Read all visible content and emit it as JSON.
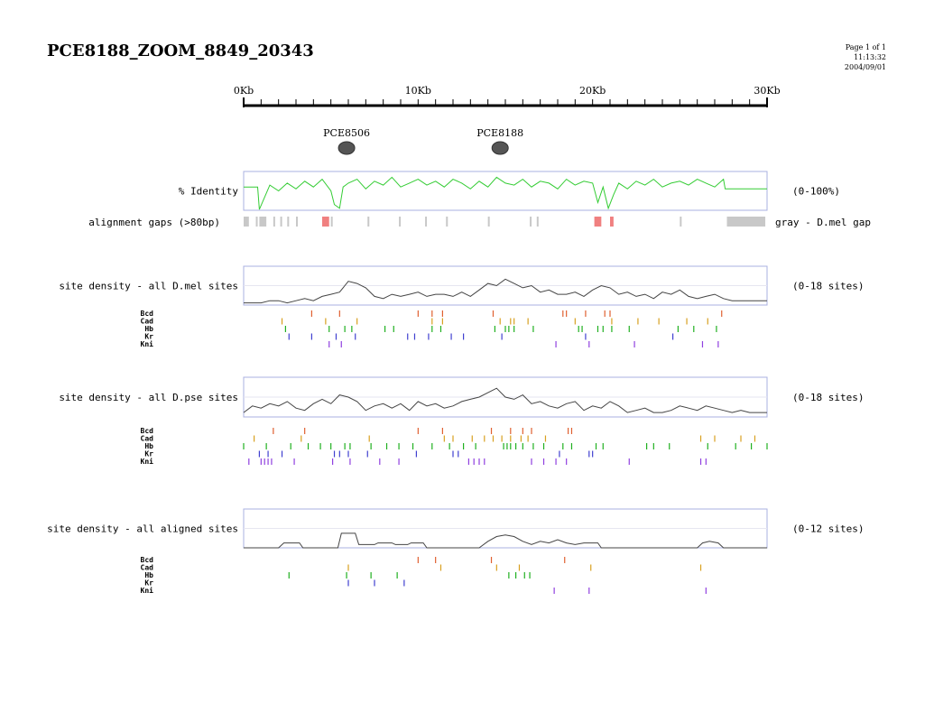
{
  "page": {
    "title": "PCE8188_ZOOM_8849_20343",
    "page_label": "Page 1 of 1",
    "time": "11:13:32",
    "date": "2004/09/01"
  },
  "colors": {
    "identity_line": "#33cc33",
    "density_line": "#444444",
    "panel_border": "#aab0e0",
    "gap_dmel": "#c8c8c8",
    "gap_other": "#f08080",
    "site_colors": {
      "Bcd": "#e06030",
      "Cad": "#d8a020",
      "Hb": "#20b020",
      "Kr": "#4040d0",
      "Kni": "#9040e0"
    }
  },
  "chart_data": [
    {
      "type": "scale",
      "axis_range_kb": [
        0,
        30
      ],
      "tick_labels": [
        {
          "value": 0,
          "label": "0Kb"
        },
        {
          "value": 10,
          "label": "10Kb"
        },
        {
          "value": 20,
          "label": "20Kb"
        },
        {
          "value": 30,
          "label": "30Kb"
        }
      ],
      "minor_tick_step_kb": 1
    },
    {
      "type": "features",
      "items": [
        {
          "name": "PCE8506",
          "position_kb": 5.9
        },
        {
          "name": "PCE8188",
          "position_kb": 14.7
        }
      ]
    },
    {
      "type": "line",
      "label": "% Identity",
      "range_label": "(0-100%)",
      "ylim": [
        0,
        100
      ],
      "xlim_kb": [
        0,
        30
      ],
      "x_kb": [
        0,
        0.8,
        0.9,
        1.5,
        2,
        2.5,
        3,
        3.5,
        4,
        4.5,
        5,
        5.2,
        5.5,
        5.7,
        6,
        6.5,
        7,
        7.5,
        8,
        8.5,
        9,
        9.5,
        10,
        10.5,
        11,
        11.5,
        12,
        12.5,
        13,
        13.5,
        14,
        14.5,
        15,
        15.5,
        16,
        16.5,
        17,
        17.5,
        18,
        18.5,
        19,
        19.5,
        20,
        20.3,
        20.6,
        20.9,
        21.2,
        21.5,
        22,
        22.5,
        23,
        23.5,
        24,
        24.5,
        25,
        25.5,
        26,
        26.5,
        27,
        27.5,
        27.6,
        28.5,
        29.5,
        30
      ],
      "y": [
        60,
        60,
        2,
        65,
        50,
        70,
        55,
        75,
        60,
        80,
        50,
        15,
        5,
        60,
        70,
        80,
        55,
        75,
        65,
        85,
        60,
        70,
        80,
        65,
        75,
        60,
        80,
        70,
        55,
        75,
        60,
        85,
        70,
        65,
        80,
        60,
        75,
        70,
        55,
        80,
        65,
        75,
        70,
        20,
        60,
        5,
        40,
        70,
        55,
        75,
        65,
        80,
        60,
        70,
        75,
        65,
        80,
        70,
        60,
        80,
        55,
        55,
        55,
        55
      ],
      "grid": false
    },
    {
      "type": "gaps",
      "label": "alignment gaps (>80bp)",
      "legend_label": "gray - D.mel gap",
      "gray_kb": [
        [
          0,
          0.3
        ],
        [
          0.7,
          0.8
        ],
        [
          0.9,
          1.3
        ],
        [
          1.7,
          1.8
        ],
        [
          2.1,
          2.2
        ],
        [
          2.5,
          2.6
        ],
        [
          3.0,
          3.1
        ],
        [
          5.0,
          5.1
        ],
        [
          7.1,
          7.2
        ],
        [
          8.9,
          9.0
        ],
        [
          10.4,
          10.5
        ],
        [
          11.6,
          11.7
        ],
        [
          14.0,
          14.1
        ],
        [
          16.4,
          16.5
        ],
        [
          16.8,
          16.9
        ],
        [
          25.0,
          25.1
        ],
        [
          27.7,
          29.9
        ]
      ],
      "red_kb": [
        [
          4.5,
          4.9
        ],
        [
          20.1,
          20.5
        ],
        [
          21.0,
          21.2
        ]
      ]
    },
    {
      "type": "line",
      "label": "site density - all D.mel sites",
      "range_label": "(0-18 sites)",
      "ylim": [
        0,
        18
      ],
      "xlim_kb": [
        0,
        30
      ],
      "x_kb": [
        0,
        1,
        1.5,
        2,
        2.5,
        3,
        3.5,
        4,
        4.5,
        5,
        5.5,
        6,
        6.5,
        7,
        7.5,
        8,
        8.5,
        9,
        9.5,
        10,
        10.5,
        11,
        11.5,
        12,
        12.5,
        13,
        13.5,
        14,
        14.5,
        15,
        15.5,
        16,
        16.5,
        17,
        17.5,
        18,
        18.5,
        19,
        19.5,
        20,
        20.5,
        21,
        21.5,
        22,
        22.5,
        23,
        23.5,
        24,
        24.5,
        25,
        25.5,
        26,
        26.5,
        27,
        27.5,
        28,
        28.5,
        29,
        29.5,
        30
      ],
      "y": [
        1,
        1,
        2,
        2,
        1,
        2,
        3,
        2,
        4,
        5,
        6,
        11,
        10,
        8,
        4,
        3,
        5,
        4,
        5,
        6,
        4,
        5,
        5,
        4,
        6,
        4,
        7,
        10,
        9,
        12,
        10,
        8,
        9,
        6,
        7,
        5,
        5,
        6,
        4,
        7,
        9,
        8,
        5,
        6,
        4,
        5,
        3,
        6,
        5,
        7,
        4,
        3,
        4,
        5,
        3,
        2,
        2,
        2,
        2,
        2
      ],
      "grid": true
    },
    {
      "type": "sites",
      "rows": [
        {
          "name": "Bcd",
          "x_kb": [
            3.9,
            5.5,
            10.0,
            10.8,
            11.4,
            14.3,
            18.3,
            18.5,
            19.6,
            20.7,
            21.0,
            27.4
          ]
        },
        {
          "name": "Cad",
          "x_kb": [
            2.2,
            4.7,
            6.5,
            10.8,
            11.4,
            14.7,
            15.3,
            15.5,
            16.3,
            19.0,
            21.1,
            22.6,
            23.8,
            25.4,
            26.6
          ]
        },
        {
          "name": "Hb",
          "x_kb": [
            2.4,
            4.9,
            5.8,
            6.2,
            8.1,
            8.6,
            10.8,
            11.3,
            14.4,
            15.0,
            15.2,
            15.5,
            16.6,
            19.2,
            19.4,
            20.3,
            20.6,
            21.1,
            22.1,
            24.9,
            25.8,
            27.1
          ]
        },
        {
          "name": "Kr",
          "x_kb": [
            2.6,
            3.9,
            5.3,
            6.4,
            9.4,
            9.8,
            10.6,
            11.9,
            12.6,
            14.8,
            19.6,
            24.6
          ]
        },
        {
          "name": "Kni",
          "x_kb": [
            4.9,
            5.6,
            17.9,
            19.8,
            22.4,
            26.3,
            27.2
          ]
        }
      ]
    },
    {
      "type": "line",
      "label": "site density - all D.pse sites",
      "range_label": "(0-18 sites)",
      "ylim": [
        0,
        18
      ],
      "xlim_kb": [
        0,
        30
      ],
      "x_kb": [
        0,
        0.5,
        1,
        1.5,
        2,
        2.5,
        3,
        3.5,
        4,
        4.5,
        5,
        5.5,
        6,
        6.5,
        7,
        7.5,
        8,
        8.5,
        9,
        9.5,
        10,
        10.5,
        11,
        11.5,
        12,
        12.5,
        13,
        13.5,
        14,
        14.5,
        15,
        15.5,
        16,
        16.5,
        17,
        17.5,
        18,
        18.5,
        19,
        19.5,
        20,
        20.5,
        21,
        21.5,
        22,
        22.5,
        23,
        23.5,
        24,
        24.5,
        25,
        25.5,
        26,
        26.5,
        27,
        27.5,
        28,
        28.5,
        29,
        29.5,
        30
      ],
      "y": [
        2,
        5,
        4,
        6,
        5,
        7,
        4,
        3,
        6,
        8,
        6,
        10,
        9,
        7,
        3,
        5,
        6,
        4,
        6,
        3,
        7,
        5,
        6,
        4,
        5,
        7,
        8,
        9,
        11,
        13,
        9,
        8,
        10,
        6,
        7,
        5,
        4,
        6,
        7,
        3,
        5,
        4,
        7,
        5,
        2,
        3,
        4,
        2,
        2,
        3,
        5,
        4,
        3,
        5,
        4,
        3,
        2,
        3,
        2,
        2,
        2
      ],
      "grid": true
    },
    {
      "type": "sites",
      "rows": [
        {
          "name": "Bcd",
          "x_kb": [
            1.7,
            3.5,
            10.0,
            11.4,
            14.2,
            15.3,
            16.0,
            16.5,
            18.6,
            18.8
          ]
        },
        {
          "name": "Cad",
          "x_kb": [
            0.6,
            3.3,
            7.2,
            11.5,
            12.0,
            13.1,
            13.8,
            14.3,
            14.8,
            15.3,
            15.9,
            16.3,
            17.3,
            26.2,
            27.0,
            28.5,
            29.3
          ]
        },
        {
          "name": "Hb",
          "x_kb": [
            0,
            1.3,
            2.7,
            3.7,
            4.4,
            5.0,
            5.8,
            6.1,
            7.3,
            8.2,
            8.9,
            9.7,
            10.8,
            11.8,
            12.6,
            13.3,
            14.9,
            15.1,
            15.3,
            15.6,
            16.0,
            16.6,
            17.2,
            18.3,
            18.8,
            20.2,
            20.6,
            23.1,
            23.5,
            24.4,
            26.6,
            28.2,
            29.1,
            30.0
          ]
        },
        {
          "name": "Kr",
          "x_kb": [
            0.9,
            1.4,
            2.2,
            5.2,
            5.5,
            6.0,
            7.1,
            9.9,
            12.0,
            12.3,
            18.1,
            19.8,
            20.0
          ]
        },
        {
          "name": "Kni",
          "x_kb": [
            0.3,
            1.0,
            1.2,
            1.4,
            1.6,
            2.9,
            5.1,
            6.1,
            7.8,
            8.9,
            12.9,
            13.2,
            13.5,
            13.8,
            16.5,
            17.2,
            17.9,
            18.5,
            22.1,
            26.2,
            26.5
          ]
        }
      ]
    },
    {
      "type": "line",
      "label": "site density - all aligned sites",
      "range_label": "(0-12 sites)",
      "ylim": [
        0,
        12
      ],
      "xlim_kb": [
        0,
        30
      ],
      "x_kb": [
        0,
        2,
        2.3,
        3.2,
        3.4,
        5.4,
        5.6,
        6.4,
        6.6,
        7.5,
        7.7,
        8.5,
        8.7,
        9.4,
        9.6,
        10.3,
        10.5,
        13.5,
        14,
        14.5,
        15,
        15.5,
        16,
        16.5,
        17,
        17.5,
        18,
        18.5,
        19,
        19.5,
        20,
        20.3,
        20.5,
        26,
        26.3,
        26.7,
        27.2,
        27.5,
        30
      ],
      "y": [
        0,
        0,
        1.5,
        1.5,
        0,
        0,
        4.5,
        4.5,
        1,
        1,
        1.5,
        1.5,
        1,
        1,
        1.5,
        1.5,
        0,
        0,
        2,
        3.5,
        4,
        3.5,
        2,
        1,
        2,
        1.5,
        2.5,
        1.5,
        1,
        1.5,
        1.5,
        1.5,
        0,
        0,
        1.5,
        2,
        1.5,
        0,
        0
      ],
      "grid": true
    },
    {
      "type": "sites",
      "rows": [
        {
          "name": "Bcd",
          "x_kb": [
            10.0,
            11.0,
            14.2,
            18.4
          ]
        },
        {
          "name": "Cad",
          "x_kb": [
            6.0,
            11.3,
            14.5,
            15.8,
            19.9,
            26.2
          ]
        },
        {
          "name": "Hb",
          "x_kb": [
            2.6,
            5.9,
            7.3,
            8.8,
            15.2,
            15.6,
            16.1,
            16.4
          ]
        },
        {
          "name": "Kr",
          "x_kb": [
            6.0,
            7.5,
            9.2
          ]
        },
        {
          "name": "Kni",
          "x_kb": [
            17.8,
            19.8,
            26.5
          ]
        }
      ]
    }
  ]
}
